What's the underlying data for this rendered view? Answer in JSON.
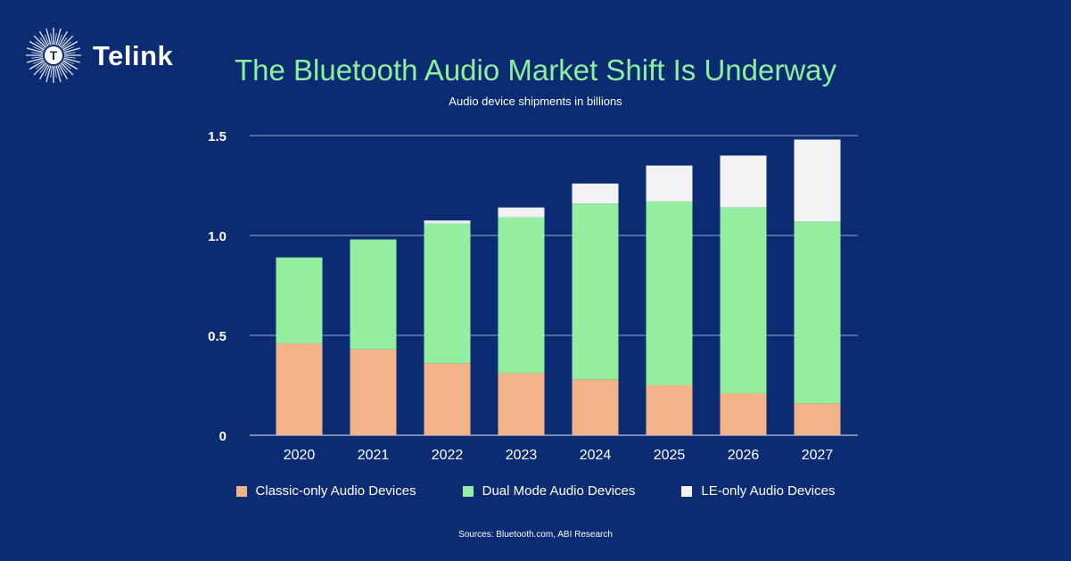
{
  "brand": {
    "name": "Telink",
    "logo_letter": "T"
  },
  "source": "Sources: Bluetooth.com, ABI Research",
  "chart_data": {
    "type": "bar",
    "stacked": true,
    "title": "The Bluetooth Audio Market Shift Is Underway",
    "subtitle": "Audio device shipments in billions",
    "xlabel": "",
    "ylabel": "",
    "ylim": [
      0,
      1.5
    ],
    "yticks": [
      0,
      0.5,
      1.0,
      1.5
    ],
    "ytick_labels": [
      "0",
      "0.5",
      "1.0",
      "1.5"
    ],
    "grid": true,
    "legend": "bottom",
    "categories": [
      "2020",
      "2021",
      "2022",
      "2023",
      "2024",
      "2025",
      "2026",
      "2027"
    ],
    "series": [
      {
        "name": "Classic-only Audio Devices",
        "color": "#f2b388",
        "values": [
          0.46,
          0.43,
          0.36,
          0.31,
          0.28,
          0.25,
          0.21,
          0.16
        ]
      },
      {
        "name": "Dual Mode Audio Devices",
        "color": "#93eea0",
        "values": [
          0.43,
          0.55,
          0.7,
          0.78,
          0.88,
          0.92,
          0.93,
          0.91
        ]
      },
      {
        "name": "LE-only Audio Devices",
        "color": "#f2f2f4",
        "values": [
          0.0,
          0.0,
          0.015,
          0.05,
          0.1,
          0.18,
          0.26,
          0.41
        ]
      }
    ]
  }
}
